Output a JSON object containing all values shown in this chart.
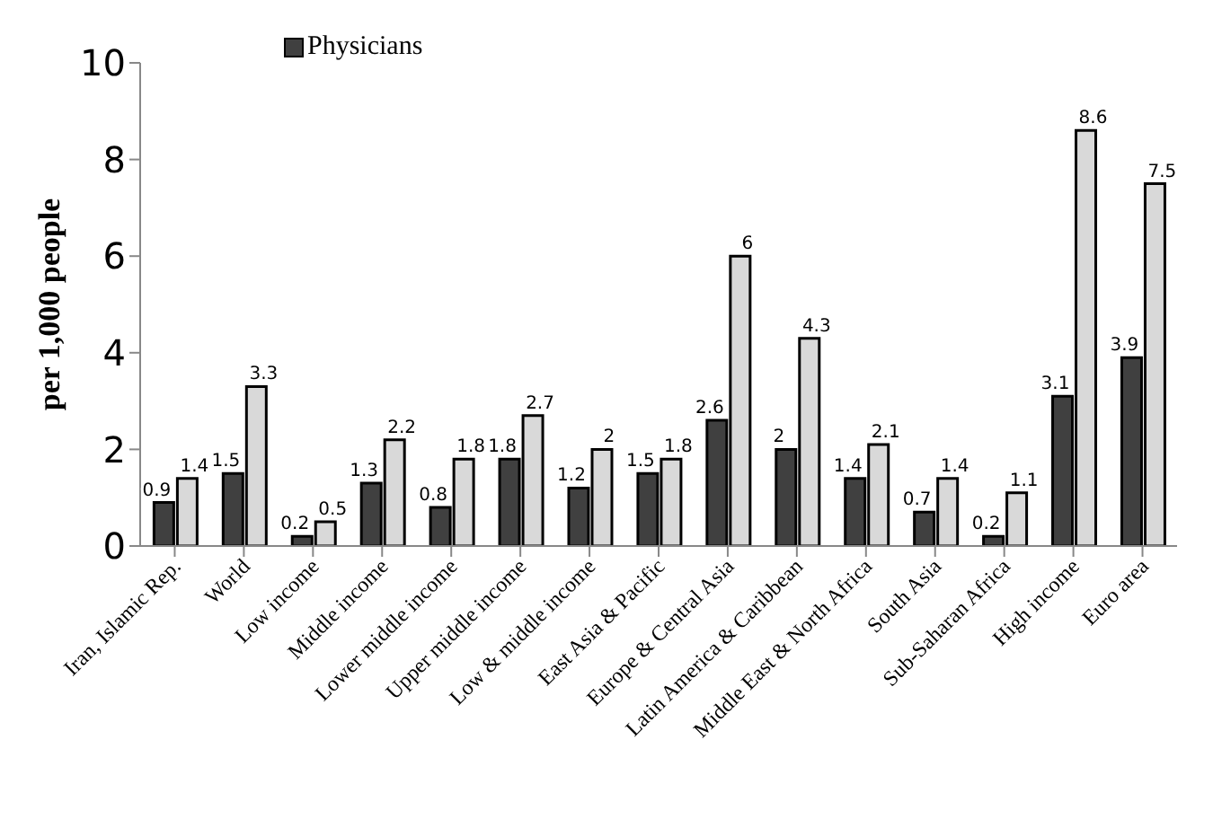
{
  "chart_data": {
    "type": "bar",
    "ylabel": "per 1,000 people",
    "categories": [
      "Iran, Islamic Rep.",
      "World",
      "Low income",
      "Middle income",
      "Lower middle income",
      "Upper middle income",
      "Low & middle income",
      "East Asia & Pacific",
      "Europe & Central Asia",
      "Latin America & Caribbean",
      "Middle East & North Africa",
      "South Asia",
      "Sub-Saharan Africa",
      "High income",
      "Euro area"
    ],
    "series": [
      {
        "name": "Physicians",
        "color": "#404040",
        "values": [
          0.9,
          1.5,
          0.2,
          1.3,
          0.8,
          1.8,
          1.2,
          1.5,
          2.6,
          2,
          1.4,
          0.7,
          0.2,
          3.1,
          3.9
        ]
      },
      {
        "color": "#d9d9d9",
        "values": [
          1.4,
          3.3,
          0.5,
          2.2,
          1.8,
          2.7,
          2,
          1.8,
          6,
          4.3,
          2.1,
          1.4,
          1.1,
          8.6,
          7.5
        ]
      }
    ],
    "ylim": [
      0,
      10
    ],
    "yticks": [
      0,
      2,
      4,
      6,
      8,
      10
    ],
    "data_labels": true,
    "legend": "top left",
    "grid": false
  }
}
